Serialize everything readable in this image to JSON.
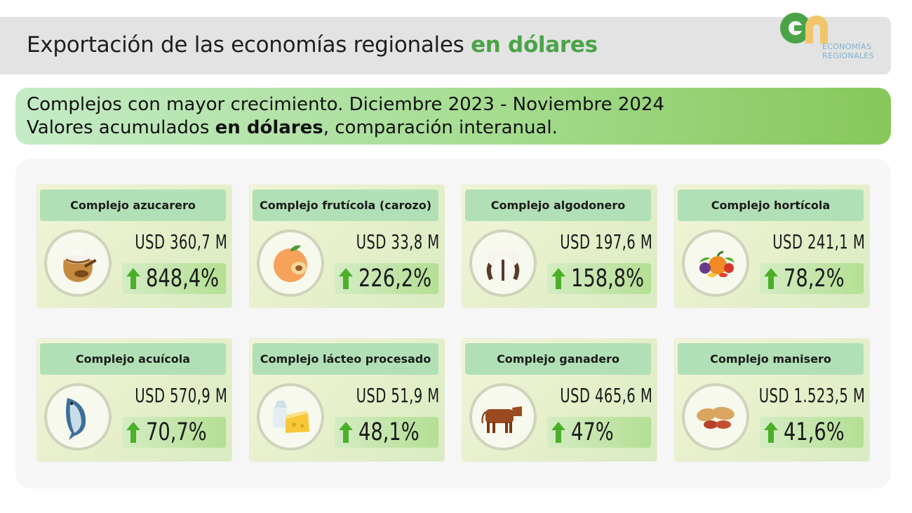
{
  "header": {
    "title_plain": "Exportación de las economías regionales ",
    "title_accent": "en dólares",
    "logo_line1": "ECONOMÍAS",
    "logo_line2": "REGIONALES"
  },
  "subtitle": {
    "line1": "Complejos con mayor crecimiento. Diciembre 2023 - Noviembre 2024",
    "line2_pre": "Valores acumulados ",
    "line2_bold": "en dólares",
    "line2_post": ", comparación interanual."
  },
  "colors": {
    "accent_green": "#4aa447",
    "arrow_green": "#4caf2a",
    "card_title_bg": "#b2e0b6"
  },
  "cards": [
    {
      "title": "Complejo azucarero",
      "value": "USD 360,7 M",
      "pct": "848,4%",
      "icon": "sugar-sack-icon"
    },
    {
      "title": "Complejo frutícola (carozo)",
      "value": "USD 33,8 M",
      "pct": "226,2%",
      "icon": "peach-icon"
    },
    {
      "title": "Complejo algodonero",
      "value": "USD 197,6 M",
      "pct": "158,8%",
      "icon": "cotton-icon"
    },
    {
      "title": "Complejo hortícola",
      "value": "USD 241,1 M",
      "pct": "78,2%",
      "icon": "vegetables-icon"
    },
    {
      "title": "Complejo acuícola",
      "value": "USD 570,9 M",
      "pct": "70,7%",
      "icon": "fish-icon"
    },
    {
      "title": "Complejo lácteo procesado",
      "value": "USD 51,9 M",
      "pct": "48,1%",
      "icon": "dairy-cheese-icon"
    },
    {
      "title": "Complejo ganadero",
      "value": "USD 465,6 M",
      "pct": "47%",
      "icon": "cow-icon"
    },
    {
      "title": "Complejo manisero",
      "value": "USD 1.523,5 M",
      "pct": "41,6%",
      "icon": "peanut-icon"
    }
  ]
}
